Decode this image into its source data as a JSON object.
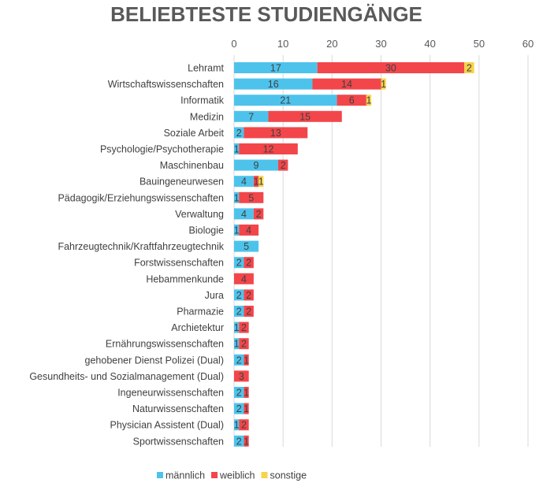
{
  "chart_data": {
    "type": "bar",
    "orientation": "horizontal",
    "stacked": true,
    "title": "BELIEBTESTE STUDIENGÄNGE",
    "categories": [
      "Lehramt",
      "Wirtschaftswissenschaften",
      "Informatik",
      "Medizin",
      "Soziale Arbeit",
      "Psychologie/Psychotherapie",
      "Maschinenbau",
      "Bauingeneurwesen",
      "Pädagogik/Erziehungswissenschaften",
      "Verwaltung",
      "Biologie",
      "Fahrzeugtechnik/Kraftfahrzeugtechnik",
      "Forstwissenschaften",
      "Hebammenkunde",
      "Jura",
      "Pharmazie",
      "Archietektur",
      "Ernährungswissenschaften",
      "gehobener Dienst Polizei (Dual)",
      "Gesundheits- und Sozialmanagement (Dual)",
      "Ingeneurwissenschaften",
      "Naturwissenschaften",
      "Physician Assistent (Dual)",
      "Sportwissenschaften"
    ],
    "series": [
      {
        "name": "männlich",
        "color": "#4DC3EC",
        "values": [
          17,
          16,
          21,
          7,
          2,
          1,
          9,
          4,
          1,
          4,
          1,
          5,
          2,
          0,
          2,
          2,
          1,
          1,
          2,
          0,
          2,
          2,
          1,
          2
        ]
      },
      {
        "name": "weiblich",
        "color": "#F2464B",
        "values": [
          30,
          14,
          6,
          15,
          13,
          12,
          2,
          1,
          5,
          2,
          4,
          0,
          2,
          4,
          2,
          2,
          2,
          2,
          1,
          3,
          1,
          1,
          2,
          1
        ]
      },
      {
        "name": "sonstige",
        "color": "#F8D34A",
        "values": [
          2,
          1,
          1,
          0,
          0,
          0,
          0,
          1,
          0,
          0,
          0,
          0,
          0,
          0,
          0,
          0,
          0,
          0,
          0,
          0,
          0,
          0,
          0,
          0
        ]
      }
    ],
    "xlim": [
      0,
      60
    ],
    "xticks": [
      0,
      10,
      20,
      30,
      40,
      50,
      60
    ],
    "xaxis_position": "top",
    "grid": true,
    "legend_position": "bottom"
  }
}
